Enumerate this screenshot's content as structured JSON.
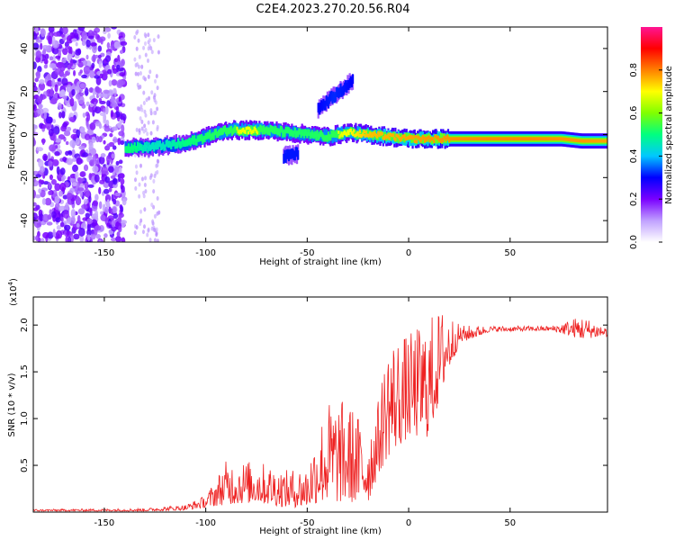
{
  "title": "C2E4.2023.270.20.56.R04",
  "chart_data": [
    {
      "type": "heatmap",
      "xlabel": "Height of straight line (km)",
      "ylabel": "Frequency (Hz)",
      "xlim": [
        -185,
        98
      ],
      "ylim": [
        -50,
        50
      ],
      "x_ticks": [
        -150,
        -100,
        -50,
        0,
        50
      ],
      "y_ticks": [
        -40,
        -20,
        0,
        20,
        40
      ],
      "colorbar": {
        "label": "Normalized spectral amplitude",
        "range": [
          0,
          1
        ],
        "ticks": [
          "0.0",
          "0.2",
          "0.4",
          "0.6",
          "0.8"
        ],
        "colormap": [
          "#ffffff",
          "#c0a0ff",
          "#7a00ff",
          "#0000ff",
          "#00c8ff",
          "#00ff80",
          "#80ff00",
          "#ffff00",
          "#ff8000",
          "#ff0000",
          "#ff1493"
        ]
      },
      "noise_region_x": [
        -185,
        -140
      ],
      "main_band": [
        {
          "x": -140,
          "y": -6,
          "amp": 0.55
        },
        {
          "x": -130,
          "y": -6,
          "amp": 0.45
        },
        {
          "x": -120,
          "y": -5,
          "amp": 0.45
        },
        {
          "x": -110,
          "y": -4,
          "amp": 0.5
        },
        {
          "x": -100,
          "y": -1,
          "amp": 0.6
        },
        {
          "x": -90,
          "y": 2,
          "amp": 0.65
        },
        {
          "x": -80,
          "y": 2,
          "amp": 0.7
        },
        {
          "x": -70,
          "y": 2,
          "amp": 0.65
        },
        {
          "x": -60,
          "y": 1,
          "amp": 0.6
        },
        {
          "x": -50,
          "y": 0,
          "amp": 0.6
        },
        {
          "x": -40,
          "y": -1,
          "amp": 0.65
        },
        {
          "x": -30,
          "y": 1,
          "amp": 0.7
        },
        {
          "x": -20,
          "y": 0,
          "amp": 0.75
        },
        {
          "x": -10,
          "y": -1,
          "amp": 0.8
        },
        {
          "x": 0,
          "y": -2,
          "amp": 0.85
        },
        {
          "x": 10,
          "y": -2,
          "amp": 0.9
        },
        {
          "x": 20,
          "y": -2,
          "amp": 0.92
        },
        {
          "x": 40,
          "y": -2,
          "amp": 0.95
        },
        {
          "x": 60,
          "y": -2,
          "amp": 0.95
        },
        {
          "x": 75,
          "y": -2,
          "amp": 0.9
        },
        {
          "x": 85,
          "y": -3,
          "amp": 0.9
        },
        {
          "x": 98,
          "y": -3,
          "amp": 0.85
        }
      ],
      "branch": [
        {
          "x": -45,
          "y": 12,
          "amp": 0.3
        },
        {
          "x": -37,
          "y": 18,
          "amp": 0.4
        },
        {
          "x": -28,
          "y": 25,
          "amp": 0.3
        }
      ],
      "side_feature": [
        {
          "x": -62,
          "y": -10,
          "amp": 0.35
        },
        {
          "x": -55,
          "y": -9,
          "amp": 0.35
        }
      ]
    },
    {
      "type": "line",
      "xlabel": "Height of straight line (km)",
      "ylabel": "SNR (10 * v/v)",
      "y_multiplier": "(x10",
      "y_multiplier_exp": "4",
      "y_multiplier_close": ")",
      "xlim": [
        -185,
        98
      ],
      "ylim": [
        0,
        2.3
      ],
      "x_ticks": [
        -150,
        -100,
        -50,
        0,
        50
      ],
      "y_ticks": [
        "0.5",
        "1.0",
        "1.5",
        "2.0"
      ],
      "color": "#ee2222",
      "envelope": [
        {
          "x": -185,
          "lo": 0.01,
          "hi": 0.03
        },
        {
          "x": -130,
          "lo": 0.01,
          "hi": 0.04
        },
        {
          "x": -110,
          "lo": 0.02,
          "hi": 0.08
        },
        {
          "x": -100,
          "lo": 0.05,
          "hi": 0.18
        },
        {
          "x": -90,
          "lo": 0.08,
          "hi": 0.55
        },
        {
          "x": -75,
          "lo": 0.1,
          "hi": 0.55
        },
        {
          "x": -60,
          "lo": 0.05,
          "hi": 0.45
        },
        {
          "x": -50,
          "lo": 0.05,
          "hi": 0.5
        },
        {
          "x": -45,
          "lo": 0.1,
          "hi": 0.9
        },
        {
          "x": -40,
          "lo": 0.1,
          "hi": 1.2
        },
        {
          "x": -30,
          "lo": 0.1,
          "hi": 1.2
        },
        {
          "x": -20,
          "lo": 0.1,
          "hi": 0.9
        },
        {
          "x": -15,
          "lo": 0.4,
          "hi": 1.2
        },
        {
          "x": -10,
          "lo": 0.6,
          "hi": 1.9
        },
        {
          "x": 0,
          "lo": 0.8,
          "hi": 1.9
        },
        {
          "x": 10,
          "lo": 0.8,
          "hi": 2.1
        },
        {
          "x": 18,
          "lo": 1.4,
          "hi": 2.2
        },
        {
          "x": 25,
          "lo": 1.8,
          "hi": 2.0
        },
        {
          "x": 40,
          "lo": 1.93,
          "hi": 1.99
        },
        {
          "x": 70,
          "lo": 1.94,
          "hi": 1.99
        },
        {
          "x": 85,
          "lo": 1.85,
          "hi": 2.1
        },
        {
          "x": 98,
          "lo": 1.88,
          "hi": 1.98
        }
      ]
    }
  ]
}
